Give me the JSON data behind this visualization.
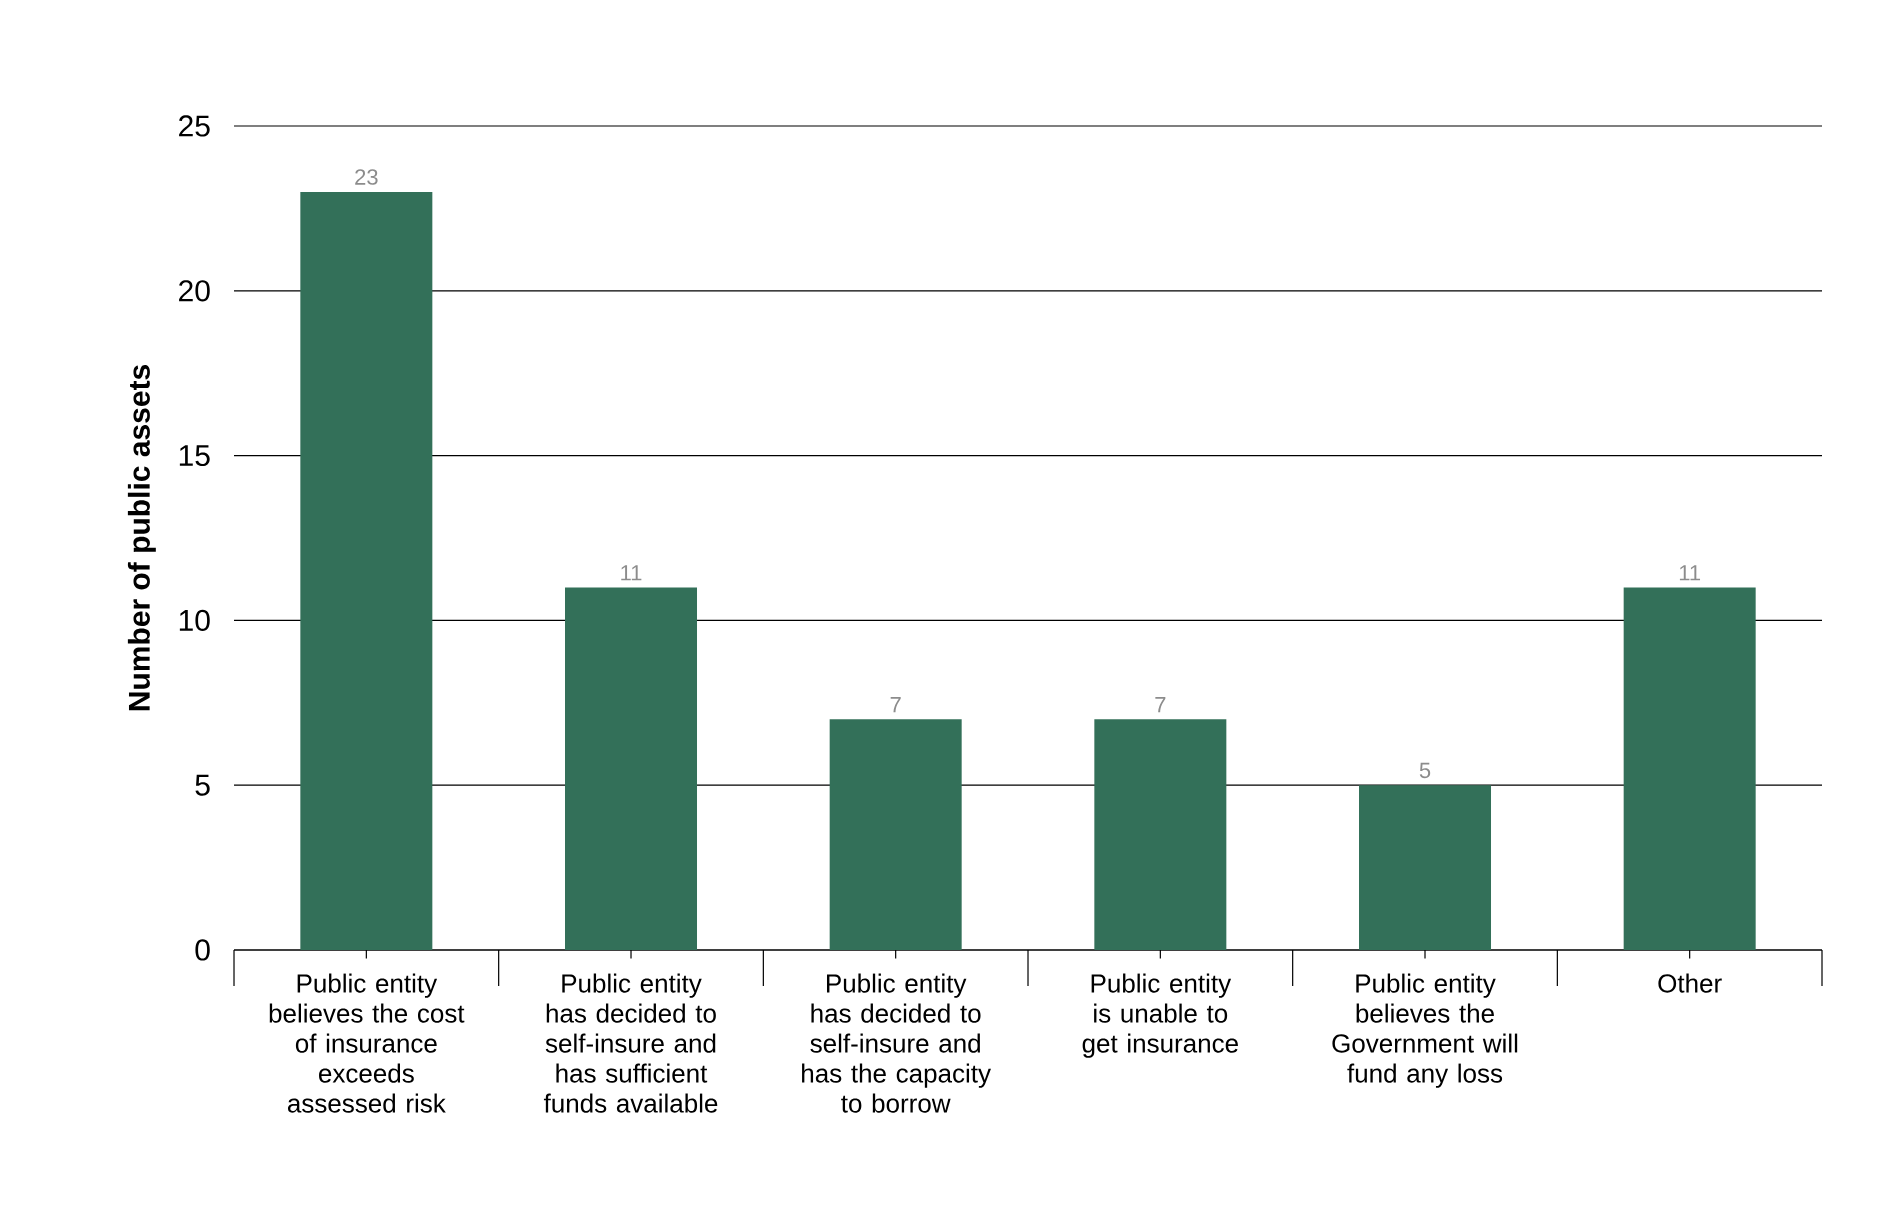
{
  "chart_data": {
    "type": "bar",
    "ylabel": "Number of public assets",
    "categories": [
      "Public entity believes the cost of insurance exceeds assessed risk",
      "Public entity has decided to self-insure and has sufficient funds available",
      "Public entity has decided to self-insure and has the capacity to borrow",
      "Public entity is unable to get insurance",
      "Public entity believes the Government will fund any loss",
      "Other"
    ],
    "values": [
      23,
      11,
      7,
      7,
      5,
      11
    ],
    "color": "#337059",
    "ylim": [
      0,
      25
    ],
    "yticks": [
      0,
      5,
      10,
      15,
      20,
      25
    ],
    "grid": "y",
    "data_labels": true
  }
}
